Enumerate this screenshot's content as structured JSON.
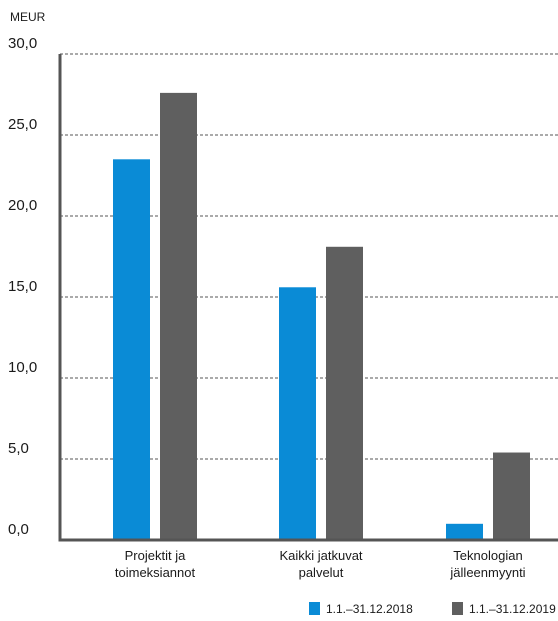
{
  "chart_data": {
    "type": "bar",
    "unit_label": "MEUR",
    "categories": [
      [
        "Projektit ja",
        "toimeksiannot"
      ],
      [
        "Kaikki jatkuvat",
        "palvelut"
      ],
      [
        "Teknologian",
        "jälleenmyynti"
      ]
    ],
    "series": [
      {
        "name": "1.1.–31.12.2018",
        "color": "#0a8bd6",
        "values": [
          23.5,
          15.6,
          1.0
        ]
      },
      {
        "name": "1.1.–31.12.2019",
        "color": "#5f5f5f",
        "values": [
          27.6,
          18.1,
          5.4
        ]
      }
    ],
    "ylim": [
      0,
      30
    ],
    "yticks": [
      "0,0",
      "5,0",
      "10,0",
      "15,0",
      "20,0",
      "25,0",
      "30,0"
    ],
    "ytick_values": [
      0,
      5,
      10,
      15,
      20,
      25,
      30
    ],
    "grid": true,
    "legend_position": "bottom-right"
  }
}
